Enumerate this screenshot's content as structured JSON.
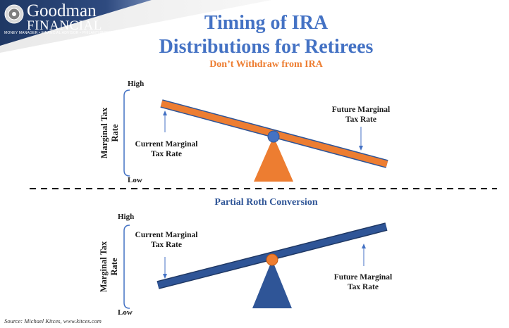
{
  "logo": {
    "line1": "Goodman",
    "line2": "FINANCIAL",
    "tagline": "MONEY MANAGER • FINANCIAL ADVISOR • PHILANTHROPIST",
    "icon": "seal-icon"
  },
  "title": {
    "line1": "Timing of IRA",
    "line2": "Distributions for Retirees"
  },
  "top": {
    "heading": "Don’t Withdraw from IRA",
    "axis_label_line1": "Marginal Tax",
    "axis_label_line2": "Rate",
    "high": "High",
    "low": "Low",
    "current_line1": "Current Marginal",
    "current_line2": "Tax Rate",
    "future_line1": "Future Marginal",
    "future_line2": "Tax Rate"
  },
  "bottom": {
    "heading": "Partial Roth Conversion",
    "axis_label_line1": "Marginal Tax",
    "axis_label_line2": "Rate",
    "high": "High",
    "low": "Low",
    "current_line1": "Current Marginal",
    "current_line2": "Tax Rate",
    "future_line1": "Future Marginal",
    "future_line2": "Tax Rate"
  },
  "source": "Source: Michael Kitces, www.kitces.com",
  "colors": {
    "orange": "#ed7d31",
    "blue_dark": "#2f5597",
    "blue_pivot": "#4472c4",
    "navy_banner": "#1f3864"
  }
}
